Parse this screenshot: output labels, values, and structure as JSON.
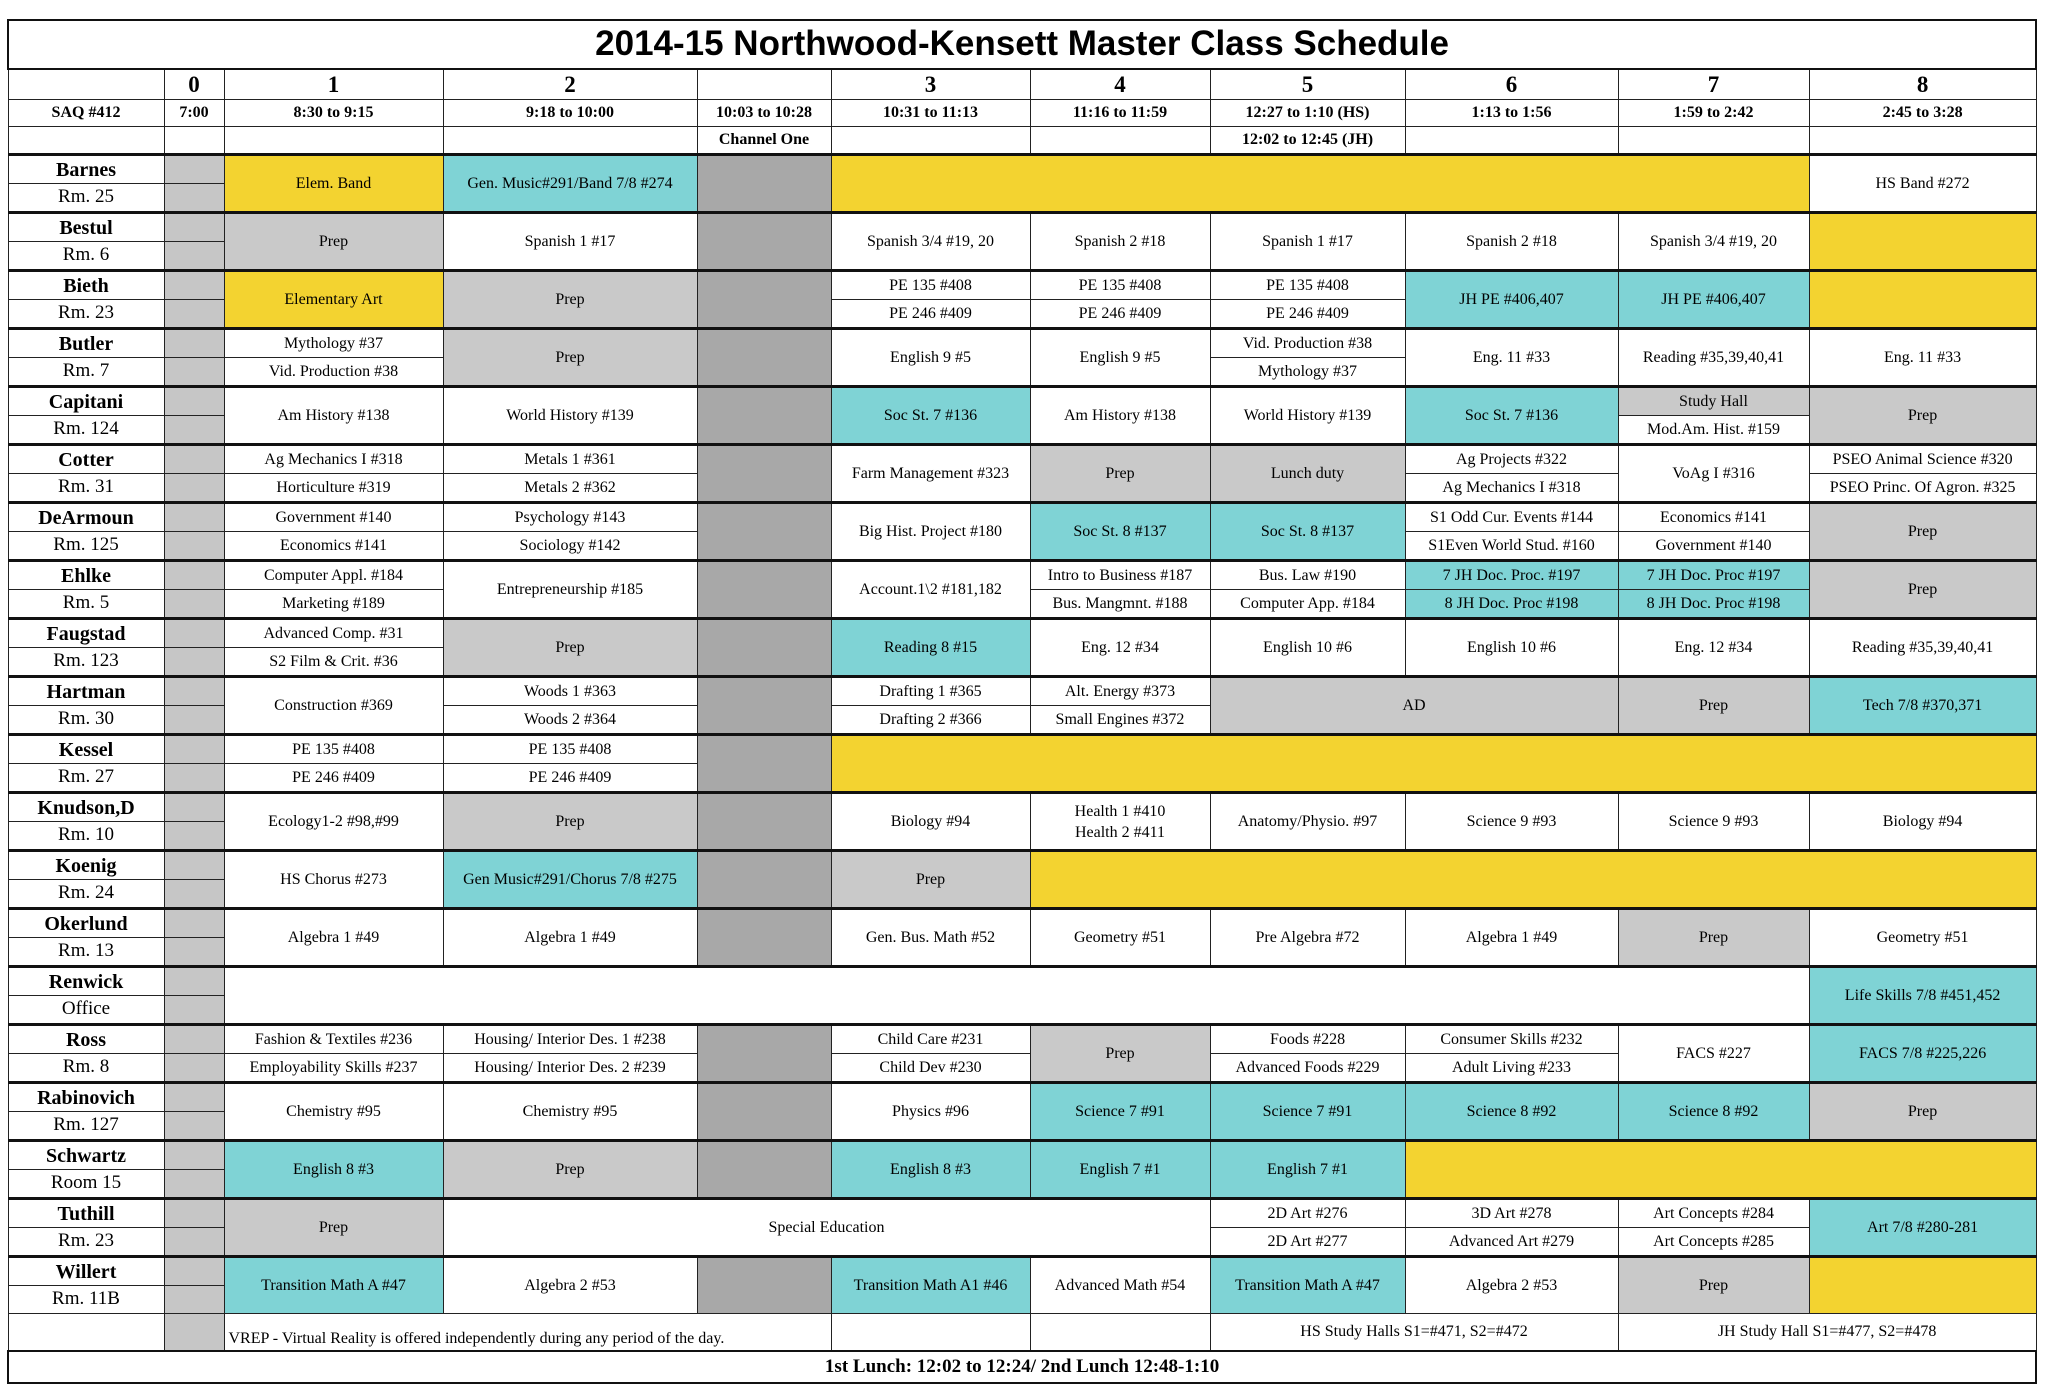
{
  "title": "2014-15 Northwood-Kensett Master Class Schedule",
  "colors": {
    "yellow": "#f3d330",
    "teal": "#7fd3d5",
    "prep_gray": "#c9c9c9",
    "channel_one_gray": "#a8a8a8"
  },
  "header": {
    "periods": [
      "",
      "0",
      "1",
      "2",
      "",
      "3",
      "4",
      "5",
      "6",
      "7",
      "8"
    ],
    "times": [
      "SAQ #412",
      "7:00",
      "8:30 to 9:15",
      "9:18 to 10:00",
      "10:03 to 10:28",
      "10:31 to 11:13",
      "11:16 to 11:59",
      "12:27 to 1:10 (HS)",
      "1:13 to 1:56",
      "1:59 to 2:42",
      "2:45 to 3:28"
    ],
    "sub": [
      "",
      "",
      "",
      "",
      "Channel One",
      "",
      "",
      "12:02 to 12:45 (JH)",
      "",
      "",
      ""
    ]
  },
  "teachers": [
    {
      "name": "Barnes",
      "room": "Rm. 25",
      "cells": [
        {
          "text": "Elem. Band",
          "color": "y"
        },
        {
          "text": "Gen. Music#291/Band 7/8 #274",
          "color": "t"
        },
        {
          "color": "co"
        },
        {
          "text": "",
          "color": "y",
          "span": 5
        },
        {
          "text": "HS Band #272"
        }
      ]
    },
    {
      "name": "Bestul",
      "room": "Rm. 6",
      "cells": [
        {
          "text": "Prep",
          "color": "g"
        },
        {
          "text": "Spanish 1 #17"
        },
        {
          "color": "co"
        },
        {
          "text": "Spanish 3/4 #19, 20"
        },
        {
          "text": "Spanish 2 #18"
        },
        {
          "text": "Spanish 1 #17"
        },
        {
          "text": "Spanish 2 #18"
        },
        {
          "text": "Spanish 3/4 #19, 20"
        },
        {
          "text": "",
          "color": "y"
        }
      ]
    },
    {
      "name": "Bieth",
      "room": "Rm. 23",
      "cells": [
        {
          "text": "Elementary Art",
          "color": "y"
        },
        {
          "text": "Prep",
          "color": "g"
        },
        {
          "color": "co"
        },
        {
          "split": [
            "PE 135 #408",
            "PE 246 #409"
          ]
        },
        {
          "split": [
            "PE 135 #408",
            "PE 246 #409"
          ]
        },
        {
          "split": [
            "PE 135 #408",
            "PE 246 #409"
          ]
        },
        {
          "text": "JH PE #406,407",
          "color": "t"
        },
        {
          "text": "JH PE #406,407",
          "color": "t"
        },
        {
          "text": "",
          "color": "y"
        }
      ]
    },
    {
      "name": "Butler",
      "room": "Rm. 7",
      "cells": [
        {
          "split": [
            "Mythology #37",
            "Vid. Production #38"
          ]
        },
        {
          "text": "Prep",
          "color": "g"
        },
        {
          "color": "co"
        },
        {
          "text": "English 9 #5"
        },
        {
          "text": "English 9 #5"
        },
        {
          "split": [
            "Vid. Production #38",
            "Mythology #37"
          ]
        },
        {
          "text": "Eng. 11 #33"
        },
        {
          "text": "Reading #35,39,40,41"
        },
        {
          "text": "Eng. 11 #33"
        }
      ]
    },
    {
      "name": "Capitani",
      "room": "Rm. 124",
      "cells": [
        {
          "text": "Am History #138"
        },
        {
          "text": "World History #139"
        },
        {
          "color": "co"
        },
        {
          "text": "Soc St. 7 #136",
          "color": "t"
        },
        {
          "text": "Am History #138"
        },
        {
          "text": "World History #139"
        },
        {
          "text": "Soc St. 7 #136",
          "color": "t"
        },
        {
          "split": [
            "Study Hall",
            "Mod.Am. Hist. #159"
          ],
          "split_colors": [
            "g",
            ""
          ]
        },
        {
          "text": "Prep",
          "color": "g"
        }
      ]
    },
    {
      "name": "Cotter",
      "room": "Rm. 31",
      "cells": [
        {
          "split": [
            "Ag Mechanics I #318",
            "Horticulture #319"
          ]
        },
        {
          "split": [
            "Metals 1 #361",
            "Metals 2 #362"
          ]
        },
        {
          "color": "co"
        },
        {
          "text": "Farm Management #323"
        },
        {
          "text": "Prep",
          "color": "g"
        },
        {
          "text": "Lunch duty",
          "color": "g"
        },
        {
          "split": [
            "Ag Projects #322",
            "Ag Mechanics I #318"
          ]
        },
        {
          "text": "VoAg I #316"
        },
        {
          "split": [
            "PSEO Animal Science #320",
            "PSEO Princ. Of Agron. #325"
          ]
        }
      ]
    },
    {
      "name": "DeArmoun",
      "room": "Rm. 125",
      "cells": [
        {
          "split": [
            "Government #140",
            "Economics #141"
          ]
        },
        {
          "split": [
            "Psychology #143",
            "Sociology #142"
          ]
        },
        {
          "color": "co"
        },
        {
          "text": "Big Hist. Project #180"
        },
        {
          "text": "Soc St. 8 #137",
          "color": "t"
        },
        {
          "text": "Soc St. 8 #137",
          "color": "t"
        },
        {
          "split": [
            "S1 Odd Cur. Events #144",
            "S1Even World Stud. #160"
          ]
        },
        {
          "split": [
            "Economics #141",
            "Government #140"
          ]
        },
        {
          "text": "Prep",
          "color": "g"
        }
      ]
    },
    {
      "name": "Ehlke",
      "room": "Rm. 5",
      "cells": [
        {
          "split": [
            "Computer Appl.  #184",
            "Marketing #189"
          ]
        },
        {
          "text": "Entrepreneurship #185"
        },
        {
          "color": "co"
        },
        {
          "text": "Account.1\\2 #181,182"
        },
        {
          "split": [
            "Intro to Business #187",
            "Bus.  Mangmnt. #188"
          ]
        },
        {
          "split": [
            "Bus. Law #190",
            "Computer App. #184"
          ]
        },
        {
          "split": [
            "7 JH Doc. Proc. #197",
            "8 JH Doc. Proc #198"
          ],
          "color": "t"
        },
        {
          "split": [
            "7 JH Doc. Proc #197",
            "8 JH Doc. Proc #198"
          ],
          "color": "t"
        },
        {
          "text": "Prep",
          "color": "g"
        }
      ]
    },
    {
      "name": "Faugstad",
      "room": "Rm. 123",
      "cells": [
        {
          "split": [
            "Advanced Comp. #31",
            "S2 Film & Crit. #36"
          ]
        },
        {
          "text": "Prep",
          "color": "g"
        },
        {
          "color": "co"
        },
        {
          "text": "Reading 8 #15",
          "color": "t"
        },
        {
          "text": "Eng. 12 #34"
        },
        {
          "text": "English 10 #6"
        },
        {
          "text": "English 10 #6"
        },
        {
          "text": "Eng. 12 #34"
        },
        {
          "text": "Reading #35,39,40,41"
        }
      ]
    },
    {
      "name": "Hartman",
      "room": "Rm. 30",
      "cells": [
        {
          "text": "Construction #369"
        },
        {
          "split": [
            "Woods 1 #363",
            "Woods 2 #364"
          ]
        },
        {
          "color": "co"
        },
        {
          "split": [
            "Drafting 1 #365",
            "Drafting 2 #366"
          ]
        },
        {
          "split": [
            "Alt. Energy #373",
            "Small Engines #372"
          ]
        },
        {
          "text": "AD",
          "color": "g",
          "span": 2
        },
        {
          "text": "Prep",
          "color": "g"
        },
        {
          "text": "Tech 7/8 #370,371",
          "color": "t"
        }
      ]
    },
    {
      "name": "Kessel",
      "room": "Rm. 27",
      "cells": [
        {
          "split": [
            "PE 135 #408",
            "PE 246 #409"
          ]
        },
        {
          "split": [
            "PE 135 #408",
            "PE 246 #409"
          ]
        },
        {
          "color": "co"
        },
        {
          "text": "",
          "color": "y",
          "span": 6
        }
      ]
    },
    {
      "name": "Knudson,D",
      "room": "Rm. 10",
      "cells": [
        {
          "text": "Ecology1-2 #98,#99"
        },
        {
          "text": "Prep",
          "color": "g"
        },
        {
          "color": "co"
        },
        {
          "text": "Biology #94"
        },
        {
          "lines": [
            "Health 1 #410",
            "Health 2 #411"
          ]
        },
        {
          "text": "Anatomy/Physio. #97"
        },
        {
          "text": "Science 9 #93"
        },
        {
          "text": "Science 9 #93"
        },
        {
          "text": "Biology #94"
        }
      ]
    },
    {
      "name": "Koenig",
      "room": "Rm. 24",
      "cells": [
        {
          "text": "HS Chorus #273"
        },
        {
          "text": "Gen Music#291/Chorus 7/8 #275",
          "color": "t"
        },
        {
          "color": "co"
        },
        {
          "text": "Prep",
          "color": "g"
        },
        {
          "text": "",
          "color": "y",
          "span": 5
        }
      ]
    },
    {
      "name": "Okerlund",
      "room": "Rm. 13",
      "cells": [
        {
          "text": "Algebra 1 #49"
        },
        {
          "text": "Algebra 1 #49"
        },
        {
          "color": "co"
        },
        {
          "text": "Gen. Bus. Math #52"
        },
        {
          "text": "Geometry #51"
        },
        {
          "text": "Pre Algebra #72"
        },
        {
          "text": "Algebra 1 #49"
        },
        {
          "text": "Prep",
          "color": "g"
        },
        {
          "text": "Geometry #51"
        }
      ]
    },
    {
      "name": "Renwick",
      "room": "Office",
      "cells": [
        {
          "text": "",
          "span": 8
        },
        {
          "text": "Life Skills 7/8 #451,452",
          "color": "t"
        }
      ]
    },
    {
      "name": "Ross",
      "room": "Rm. 8",
      "cells": [
        {
          "split": [
            "Fashion & Textiles #236",
            "Employability Skills #237"
          ]
        },
        {
          "split": [
            "Housing/ Interior Des. 1 #238",
            "Housing/ Interior Des. 2 #239"
          ]
        },
        {
          "color": "co"
        },
        {
          "split": [
            "Child Care #231",
            "Child Dev #230"
          ]
        },
        {
          "text": "Prep",
          "color": "g"
        },
        {
          "split": [
            "Foods #228",
            "Advanced Foods #229"
          ]
        },
        {
          "split": [
            "Consumer Skills #232",
            "Adult Living #233"
          ]
        },
        {
          "text": "FACS #227"
        },
        {
          "text": "FACS 7/8 #225,226",
          "color": "t"
        }
      ]
    },
    {
      "name": "Rabinovich",
      "room": "Rm. 127",
      "cells": [
        {
          "text": "Chemistry #95"
        },
        {
          "text": "Chemistry #95"
        },
        {
          "color": "co"
        },
        {
          "text": "Physics #96"
        },
        {
          "text": "Science 7 #91",
          "color": "t"
        },
        {
          "text": "Science 7 #91",
          "color": "t"
        },
        {
          "text": "Science 8 #92",
          "color": "t"
        },
        {
          "text": "Science 8 #92",
          "color": "t"
        },
        {
          "text": "Prep",
          "color": "g"
        }
      ]
    },
    {
      "name": "Schwartz",
      "room": "Room 15",
      "cells": [
        {
          "text": "English 8 #3",
          "color": "t"
        },
        {
          "text": "Prep",
          "color": "g"
        },
        {
          "color": "co"
        },
        {
          "text": "English 8 #3",
          "color": "t"
        },
        {
          "text": "English 7 #1",
          "color": "t"
        },
        {
          "text": "English 7 #1",
          "color": "t"
        },
        {
          "text": "",
          "color": "y",
          "span": 3
        }
      ]
    },
    {
      "name": "Tuthill",
      "room": "Rm. 23",
      "cells": [
        {
          "text": "Prep",
          "color": "g"
        },
        {
          "text": "Special Education",
          "span": 4
        },
        {
          "split": [
            "2D Art #276",
            "2D Art #277"
          ]
        },
        {
          "split": [
            "3D Art #278",
            "Advanced Art #279"
          ]
        },
        {
          "split": [
            "Art Concepts #284",
            "Art Concepts #285"
          ]
        },
        {
          "text": "Art 7/8 #280-281",
          "color": "t"
        }
      ]
    },
    {
      "name": "Willert",
      "room": "Rm. 11B",
      "cells": [
        {
          "text": "Transition Math A #47",
          "color": "t"
        },
        {
          "text": "Algebra 2 #53"
        },
        {
          "color": "co"
        },
        {
          "text": "Transition Math A1 #46",
          "color": "t"
        },
        {
          "text": "Advanced Math #54"
        },
        {
          "text": "Transition Math A #47",
          "color": "t"
        },
        {
          "text": "Algebra 2 #53"
        },
        {
          "text": "Prep",
          "color": "g"
        },
        {
          "text": "",
          "color": "y"
        }
      ]
    }
  ],
  "footer": {
    "vrep_note": "VREP - Virtual Reality is offered independently during any period of the day.",
    "hs_study_halls": "HS Study Halls S1=#471, S2=#472",
    "jh_study_hall": "JH Study Hall S1=#477, S2=#478",
    "lunch": "1st Lunch: 12:02 to 12:24/ 2nd Lunch 12:48-1:10"
  }
}
